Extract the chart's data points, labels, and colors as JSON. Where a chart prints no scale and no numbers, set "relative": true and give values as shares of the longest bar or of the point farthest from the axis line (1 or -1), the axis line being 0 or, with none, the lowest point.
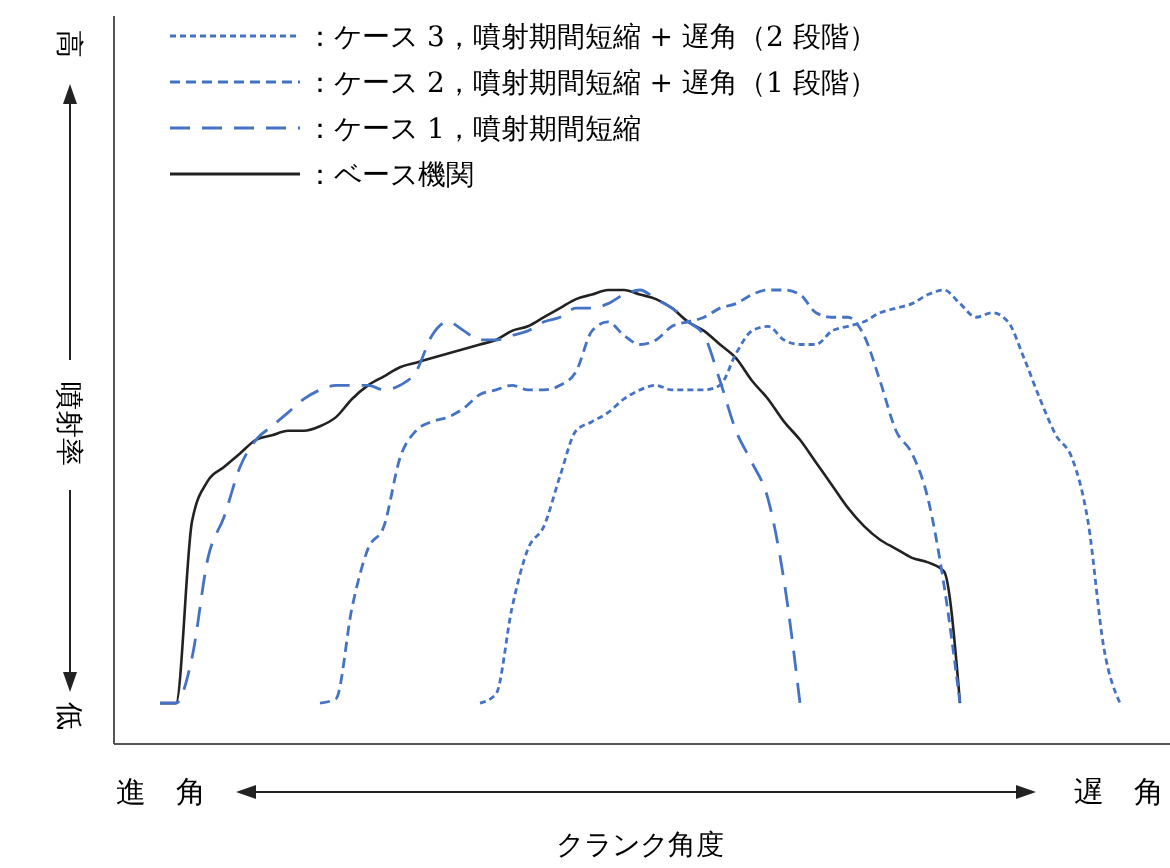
{
  "chart_data": {
    "type": "line",
    "relative": true,
    "xlabel": "クランク角度",
    "ylabel": "噴射率",
    "legend": "top left",
    "annotations": [
      "高",
      "低",
      "進　角",
      "遅　角"
    ],
    "categories": [
      null,
      null,
      null,
      null,
      null,
      null,
      null,
      null,
      null,
      null,
      null,
      null,
      null,
      null,
      null,
      null,
      null,
      null,
      null,
      null,
      null,
      null,
      null,
      null,
      null,
      null,
      null,
      null,
      null,
      null,
      null,
      null,
      null,
      null,
      null,
      null,
      null,
      null,
      null,
      null,
      null,
      null,
      null,
      null,
      null,
      null,
      null,
      null,
      null,
      null,
      null,
      null,
      null,
      null,
      null,
      null,
      null,
      null,
      null,
      null,
      null
    ],
    "series": [
      {
        "name": "：ケース 3，噴射期間短縮 + 遅角（2 段階）",
        "color": "#4472c4",
        "line_style": "dotted",
        "values": [
          null,
          null,
          null,
          null,
          null,
          null,
          null,
          null,
          null,
          null,
          null,
          null,
          null,
          null,
          null,
          null,
          null,
          null,
          null,
          null,
          0.09,
          0.11,
          0.3,
          0.43,
          0.48,
          0.59,
          0.69,
          0.71,
          0.73,
          0.76,
          0.78,
          0.79,
          0.78,
          0.78,
          0.78,
          0.79,
          0.86,
          0.91,
          0.92,
          0.89,
          0.88,
          0.88,
          0.91,
          0.92,
          0.93,
          0.95,
          0.96,
          0.97,
          0.99,
          1.0,
          0.97,
          0.94,
          0.95,
          0.93,
          0.85,
          0.76,
          0.68,
          0.63,
          0.49,
          0.21,
          0.09
        ]
      },
      {
        "name": "：ケース 2，噴射期間短縮 + 遅角（1 段階）",
        "color": "#4472c4",
        "line_style": "dashed",
        "values": [
          null,
          null,
          null,
          null,
          null,
          null,
          null,
          null,
          null,
          null,
          0.09,
          0.1,
          0.3,
          0.43,
          0.48,
          0.63,
          0.69,
          0.71,
          0.72,
          0.74,
          0.77,
          0.78,
          0.79,
          0.78,
          0.78,
          0.79,
          0.82,
          0.91,
          0.93,
          0.9,
          0.88,
          0.89,
          0.92,
          0.93,
          0.94,
          0.96,
          0.97,
          0.99,
          1.0,
          1.0,
          0.99,
          0.95,
          0.94,
          0.94,
          0.9,
          0.8,
          0.69,
          0.64,
          0.54,
          0.35,
          0.09,
          null,
          null,
          null,
          null,
          null,
          null,
          null,
          null,
          null,
          null
        ]
      },
      {
        "name": "：ケース 1，噴射期間短縮",
        "color": "#4472c4",
        "line_style": "longdash",
        "values": [
          0.09,
          0.09,
          0.19,
          0.41,
          0.5,
          0.61,
          0.67,
          0.7,
          0.73,
          0.76,
          0.78,
          0.79,
          0.79,
          0.79,
          0.78,
          0.79,
          0.82,
          0.9,
          0.93,
          0.91,
          0.89,
          0.89,
          0.9,
          0.91,
          0.93,
          0.94,
          0.96,
          0.96,
          0.97,
          0.99,
          1.0,
          0.98,
          0.96,
          0.93,
          0.9,
          0.8,
          0.69,
          0.62,
          0.54,
          0.36,
          0.09,
          null,
          null,
          null,
          null,
          null,
          null,
          null,
          null,
          null,
          null,
          null,
          null,
          null,
          null,
          null,
          null,
          null,
          null,
          null,
          null
        ]
      },
      {
        "name": "：ベース機関",
        "color": "#222222",
        "line_style": "solid",
        "values": [
          0.09,
          0.09,
          0.49,
          0.58,
          0.61,
          0.64,
          0.67,
          0.68,
          0.69,
          0.69,
          0.7,
          0.72,
          0.76,
          0.79,
          0.81,
          0.83,
          0.84,
          0.85,
          0.86,
          0.87,
          0.88,
          0.89,
          0.91,
          0.92,
          0.94,
          0.96,
          0.98,
          0.99,
          1,
          1,
          0.99,
          0.98,
          0.96,
          0.93,
          0.91,
          0.88,
          0.85,
          0.8,
          0.76,
          0.71,
          0.67,
          0.62,
          0.57,
          0.52,
          0.48,
          0.45,
          0.43,
          0.41,
          0.4,
          0.38,
          0.09,
          null,
          null,
          null,
          null,
          null,
          null,
          null,
          null,
          null,
          null
        ]
      }
    ]
  }
}
